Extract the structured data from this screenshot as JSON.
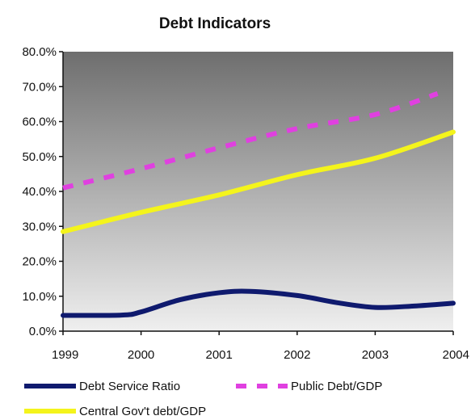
{
  "chart_data": {
    "type": "line",
    "title": "Debt Indicators",
    "x": [
      "1999",
      "2000",
      "2001",
      "2002",
      "2003",
      "2004"
    ],
    "ylim": [
      0,
      80
    ],
    "y_tick_values": [
      0,
      10,
      20,
      30,
      40,
      50,
      60,
      70,
      80
    ],
    "y_tick_labels": [
      "0.0%",
      "10.0%",
      "20.0%",
      "30.0%",
      "40.0%",
      "50.0%",
      "60.0%",
      "70.0%",
      "80.0%"
    ],
    "legend_placement": "bottom",
    "grid": false,
    "series": [
      {
        "name": "Debt Service Ratio",
        "style": "solid",
        "color": "#0f1a6e",
        "points": [
          [
            1999,
            4.5
          ],
          [
            1999.75,
            4.6
          ],
          [
            2000,
            5.5
          ],
          [
            2000.5,
            9
          ],
          [
            2001,
            11
          ],
          [
            2001.4,
            11.4
          ],
          [
            2002,
            10.2
          ],
          [
            2002.5,
            8.2
          ],
          [
            2003,
            6.8
          ],
          [
            2003.5,
            7.2
          ],
          [
            2004,
            8.0
          ]
        ]
      },
      {
        "name": "Public Debt/GDP",
        "style": "dashed",
        "color": "#e040e0",
        "points": [
          [
            1999,
            41.0
          ],
          [
            2000,
            46.5
          ],
          [
            2001,
            52.5
          ],
          [
            2002,
            58.0
          ],
          [
            2003,
            62.0
          ],
          [
            2003.8,
            68.0
          ]
        ]
      },
      {
        "name": "Central Gov't debt/GDP",
        "style": "solid",
        "color": "#f4f41c",
        "points": [
          [
            1999,
            28.5
          ],
          [
            2000,
            34.0
          ],
          [
            2001,
            39.0
          ],
          [
            2002,
            44.8
          ],
          [
            2003,
            49.5
          ],
          [
            2004,
            57.0
          ]
        ]
      }
    ]
  }
}
